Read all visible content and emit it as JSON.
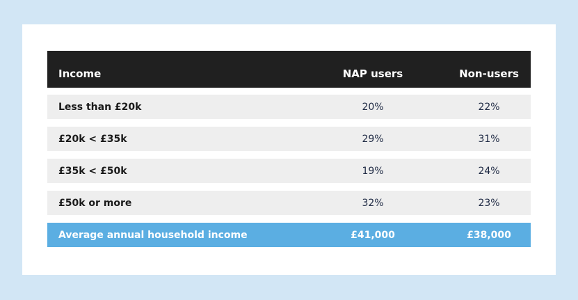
{
  "chart_data": {
    "type": "table",
    "columns": [
      "Income",
      "NAP users",
      "Non-users"
    ],
    "rows": [
      {
        "label": "Less than £20k",
        "nap_users": "20%",
        "non_users": "22%"
      },
      {
        "label": "£20k < £35k",
        "nap_users": "29%",
        "non_users": "31%"
      },
      {
        "label": "£35k < £50k",
        "nap_users": "19%",
        "non_users": "24%"
      },
      {
        "label": "£50k or more",
        "nap_users": "32%",
        "non_users": "23%"
      }
    ],
    "footer": {
      "label": "Average annual household income",
      "nap_users": "£41,000",
      "non_users": "£38,000"
    }
  },
  "colors": {
    "background": "#d2e6f5",
    "header": "#202020",
    "row": "#eeeeee",
    "footer": "#5baee2"
  }
}
